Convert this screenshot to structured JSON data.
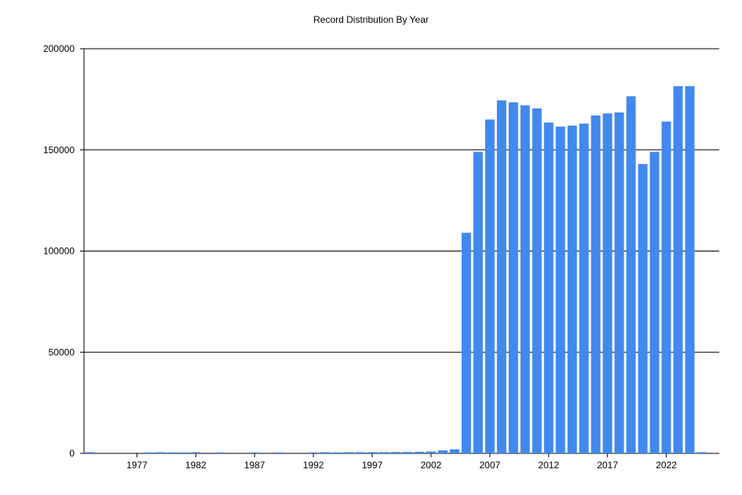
{
  "chart_data": {
    "type": "bar",
    "title": "Record Distribution By Year",
    "xlabel": "",
    "ylabel": "",
    "ylim": [
      0,
      200000
    ],
    "y_ticks": [
      0,
      50000,
      100000,
      150000,
      200000
    ],
    "y_tick_labels": [
      "0",
      "50000",
      "100000",
      "150000",
      "200000"
    ],
    "x_tick_years": [
      1977,
      1982,
      1987,
      1992,
      1997,
      2002,
      2007,
      2012,
      2017,
      2022
    ],
    "x_tick_labels": [
      "1977",
      "1982",
      "1987",
      "1992",
      "1997",
      "2002",
      "2007",
      "2012",
      "2017",
      "2022"
    ],
    "grid": "horizontal",
    "bar_color": "#4189EE",
    "categories": [
      1973,
      1978,
      1979,
      1980,
      1981,
      1982,
      1984,
      1987,
      1989,
      1992,
      1993,
      1994,
      1995,
      1996,
      1997,
      1998,
      1999,
      2000,
      2001,
      2002,
      2003,
      2004,
      2005,
      2006,
      2007,
      2008,
      2009,
      2010,
      2011,
      2012,
      2013,
      2014,
      2015,
      2016,
      2017,
      2018,
      2019,
      2020,
      2021,
      2022,
      2023,
      2024,
      2025
    ],
    "values": [
      600,
      500,
      600,
      500,
      500,
      600,
      500,
      500,
      500,
      500,
      600,
      500,
      600,
      600,
      600,
      600,
      700,
      700,
      800,
      900,
      1500,
      2000,
      109000,
      149000,
      165000,
      174500,
      173500,
      172000,
      170500,
      163500,
      161500,
      162000,
      163000,
      167000,
      168000,
      168500,
      176500,
      143000,
      149000,
      164000,
      181500,
      181500,
      600
    ]
  }
}
